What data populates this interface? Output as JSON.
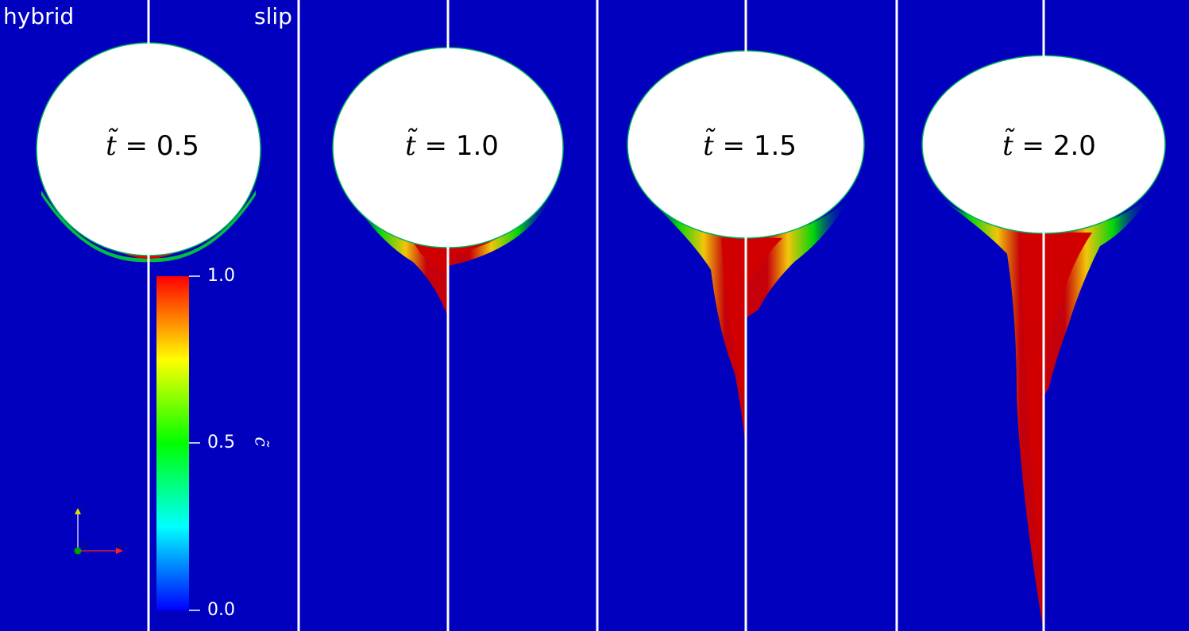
{
  "labels": {
    "left_method": "hybrid",
    "right_method": "slip"
  },
  "time_symbol": "t̃",
  "time_equals": " = ",
  "panels": [
    {
      "time_value": "0.5"
    },
    {
      "time_value": "1.0"
    },
    {
      "time_value": "1.5"
    },
    {
      "time_value": "2.0"
    }
  ],
  "colorbar": {
    "title": "c̃",
    "ticks": [
      "1.0",
      "0.5",
      "0.0"
    ],
    "colors": [
      "#0000ff",
      "#00ffff",
      "#00ff00",
      "#ffff00",
      "#ff0000"
    ]
  },
  "colors": {
    "background": "#0000be",
    "bubble": "#ffffff",
    "plume_high": "#d00000",
    "divider": "#ffffff"
  },
  "axes_widget_icon": "xyz-orientation-axes-icon"
}
